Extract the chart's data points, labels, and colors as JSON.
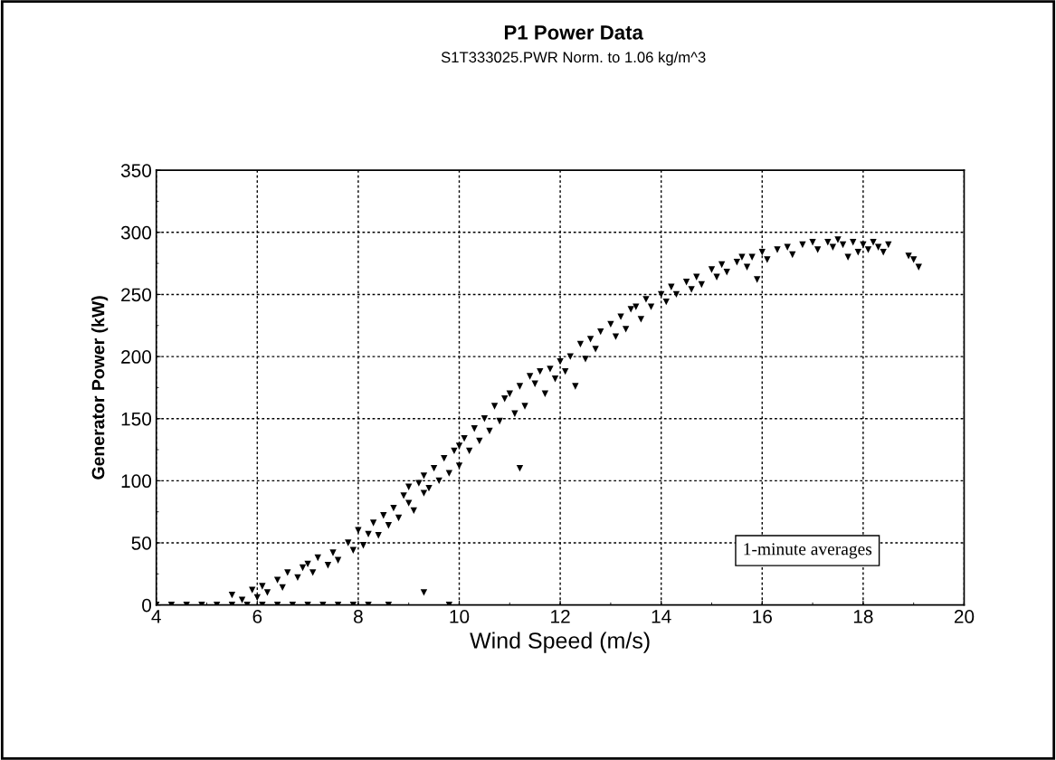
{
  "chart_data": {
    "type": "scatter",
    "title": "P1 Power Data",
    "subtitle": "S1T333025.PWR Norm. to 1.06 kg/m^3",
    "xlabel": "Wind Speed (m/s)",
    "ylabel": "Generator Power (kW)",
    "annotations": [
      "1-minute averages"
    ],
    "xlim": [
      4,
      20
    ],
    "xticks": [
      4,
      6,
      8,
      10,
      12,
      14,
      16,
      18,
      20
    ],
    "ylim": [
      0,
      350
    ],
    "yticks": [
      0,
      50,
      100,
      150,
      200,
      250,
      300,
      350
    ],
    "grid": true,
    "marker": "triangle",
    "series": [
      {
        "color": "#000000",
        "x": [
          4.0,
          4.3,
          4.6,
          4.9,
          5.2,
          5.5,
          5.8,
          6.1,
          6.4,
          6.7,
          7.0,
          7.3,
          7.6,
          7.9,
          8.2,
          8.6,
          9.8,
          5.5,
          5.7,
          5.9,
          6.0,
          6.1,
          6.2,
          6.4,
          6.5,
          6.6,
          6.8,
          6.9,
          7.0,
          7.1,
          7.2,
          7.4,
          7.5,
          7.6,
          7.8,
          7.9,
          8.0,
          8.1,
          8.2,
          8.3,
          8.4,
          8.5,
          8.6,
          8.7,
          8.8,
          8.9,
          9.0,
          9.0,
          9.1,
          9.2,
          9.3,
          9.3,
          9.4,
          9.5,
          9.6,
          9.7,
          9.8,
          9.9,
          10.0,
          10.0,
          10.1,
          10.2,
          10.3,
          10.4,
          10.5,
          10.6,
          10.7,
          10.8,
          10.9,
          11.0,
          11.1,
          11.2,
          11.3,
          11.4,
          11.5,
          11.6,
          11.7,
          11.8,
          11.9,
          12.0,
          12.1,
          12.2,
          12.4,
          12.5,
          12.6,
          12.7,
          12.8,
          13.0,
          13.1,
          13.2,
          13.3,
          13.4,
          13.5,
          13.6,
          13.7,
          13.8,
          14.0,
          14.1,
          14.2,
          14.3,
          14.5,
          14.6,
          14.7,
          14.8,
          15.0,
          15.1,
          15.2,
          15.3,
          15.5,
          15.6,
          15.7,
          15.8,
          16.0,
          16.1,
          16.3,
          16.5,
          16.6,
          16.8,
          17.0,
          17.1,
          17.3,
          17.4,
          17.5,
          17.6,
          17.8,
          17.9,
          18.0,
          18.1,
          18.2,
          18.3,
          18.4,
          18.5,
          9.3,
          11.2,
          12.3,
          15.9,
          17.7,
          18.9,
          19.1,
          19.0
        ],
        "values": [
          0,
          0,
          0,
          0,
          0,
          0,
          0,
          0,
          0,
          0,
          0,
          0,
          0,
          0,
          0,
          0,
          0,
          8,
          4,
          12,
          6,
          15,
          10,
          20,
          14,
          26,
          22,
          30,
          33,
          26,
          38,
          32,
          42,
          36,
          50,
          44,
          60,
          48,
          57,
          66,
          56,
          72,
          64,
          78,
          70,
          88,
          82,
          95,
          76,
          98,
          90,
          104,
          94,
          110,
          100,
          118,
          106,
          124,
          128,
          112,
          134,
          124,
          142,
          132,
          150,
          140,
          160,
          148,
          166,
          170,
          154,
          176,
          160,
          184,
          178,
          188,
          170,
          190,
          182,
          196,
          188,
          200,
          210,
          198,
          214,
          206,
          220,
          226,
          216,
          232,
          222,
          238,
          240,
          230,
          246,
          240,
          250,
          244,
          256,
          250,
          260,
          254,
          264,
          258,
          270,
          264,
          274,
          268,
          276,
          280,
          272,
          280,
          284,
          278,
          286,
          288,
          282,
          290,
          292,
          286,
          292,
          288,
          294,
          290,
          292,
          284,
          290,
          286,
          292,
          288,
          284,
          290,
          10,
          110,
          176,
          262,
          280,
          281,
          272,
          278
        ]
      }
    ]
  }
}
